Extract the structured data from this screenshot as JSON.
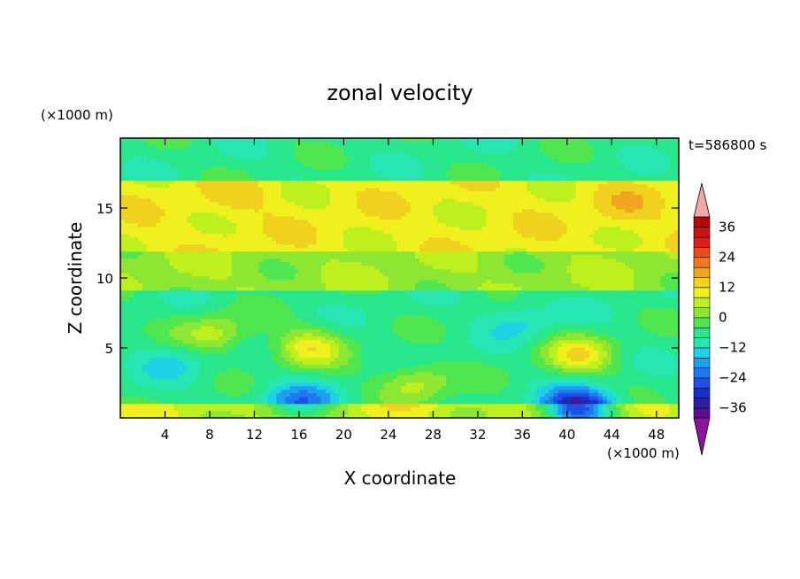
{
  "chart_data": {
    "type": "heatmap",
    "title": "zonal velocity",
    "xlabel": "X coordinate",
    "ylabel": "Z coordinate",
    "x_unit_label": "(×1000 m)",
    "y_unit_label": "(×1000 m)",
    "time_label": "t=586800 s",
    "xlim": [
      0,
      50
    ],
    "ylim": [
      0,
      20
    ],
    "x_ticks": [
      4,
      8,
      12,
      16,
      20,
      24,
      28,
      32,
      36,
      40,
      44,
      48
    ],
    "y_ticks": [
      5,
      10,
      15
    ],
    "colorbar": {
      "levels": [
        -40,
        -36,
        -32,
        -28,
        -24,
        -20,
        -16,
        -12,
        -8,
        -4,
        0,
        4,
        8,
        12,
        16,
        20,
        24,
        28,
        32,
        36,
        40
      ],
      "labels": [
        -36,
        -24,
        -12,
        0,
        12,
        24,
        36
      ],
      "colors": [
        "#5a0f8c",
        "#2a23a0",
        "#1a2ec8",
        "#1e50e6",
        "#1e78f0",
        "#1ea0f0",
        "#1ed2e6",
        "#28e6b4",
        "#28e68c",
        "#50e650",
        "#8ce632",
        "#bef01e",
        "#f0f01e",
        "#f0d21e",
        "#f0a51e",
        "#f0781e",
        "#f04b1e",
        "#dc1e1e",
        "#c81414",
        "#b40a0a"
      ],
      "under_color": "#8c14a0",
      "over_color": "#f0a8a8"
    },
    "field_description_bands": [
      {
        "z": [
          0,
          1
        ],
        "value": 7
      },
      {
        "z": [
          1,
          9
        ],
        "value": -6
      },
      {
        "z": [
          9,
          12
        ],
        "value": 3
      },
      {
        "z": [
          12,
          17
        ],
        "value": 10
      },
      {
        "z": [
          17,
          20
        ],
        "value": -6
      }
    ],
    "features": [
      {
        "x": 17,
        "z": 5,
        "value": 9,
        "label": "positive cell"
      },
      {
        "x": 41,
        "z": 4.5,
        "value": 10,
        "label": "positive cell"
      },
      {
        "x": 8.5,
        "z": 6,
        "value": 6,
        "label": "positive cell"
      },
      {
        "x": 26.5,
        "z": 2.5,
        "value": 6,
        "label": "positive cell"
      },
      {
        "x": 16,
        "z": 1,
        "value": -22,
        "label": "negative core"
      },
      {
        "x": 41,
        "z": 0.6,
        "value": -26,
        "label": "negative core"
      },
      {
        "x": 45,
        "z": 15,
        "value": 14,
        "label": "jet maximum"
      },
      {
        "x": 10,
        "z": 15.5,
        "value": 13,
        "label": "jet maximum"
      },
      {
        "x": 36,
        "z": 7,
        "value": -13,
        "label": "negative patch"
      },
      {
        "x": 5,
        "z": 4,
        "value": -12,
        "label": "negative patch"
      }
    ]
  }
}
